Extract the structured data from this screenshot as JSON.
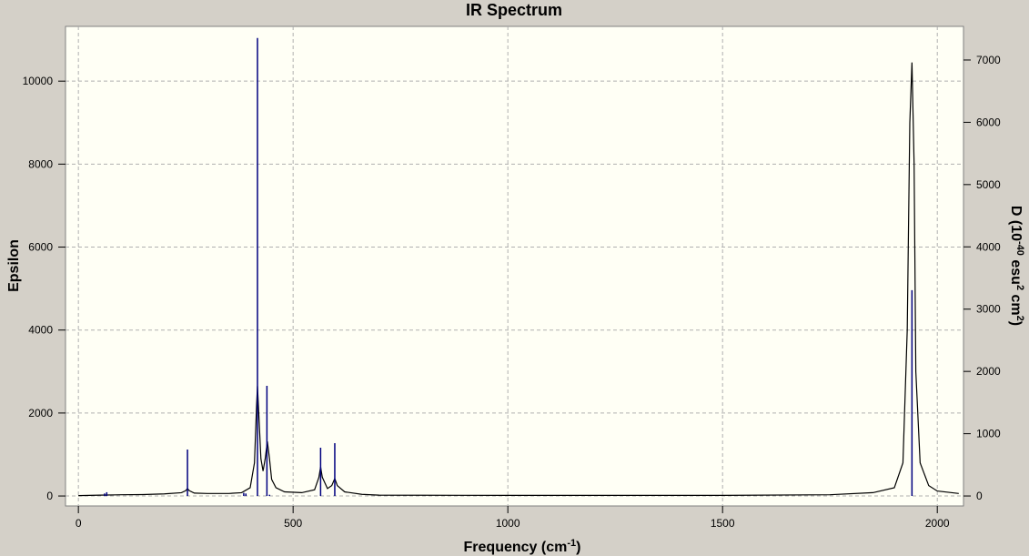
{
  "chart_data": {
    "type": "line",
    "title": "IR Spectrum",
    "x_label": [
      "Frequency (cm",
      "-1",
      ")"
    ],
    "y_label": "Epsilon",
    "y2_label": [
      "D (10",
      "-40",
      " esu",
      "2",
      " cm",
      "2",
      ")"
    ],
    "xlim": [
      -30,
      2061
    ],
    "ylim": [
      -240,
      11320
    ],
    "y2lim": [
      -160,
      7540
    ],
    "xticks": [
      0,
      500,
      1000,
      1500,
      2000
    ],
    "yticks": [
      0,
      2000,
      4000,
      6000,
      8000,
      10000
    ],
    "y2ticks": [
      0,
      1000,
      2000,
      3000,
      4000,
      5000,
      6000,
      7000
    ],
    "grid": true,
    "series": [
      {
        "type": "line",
        "color": "#000000",
        "x": [
          0,
          50,
          100,
          150,
          200,
          240,
          250,
          254,
          258,
          270,
          300,
          350,
          380,
          400,
          410,
          415,
          417,
          420,
          425,
          430,
          435,
          440,
          445,
          450,
          460,
          480,
          520,
          550,
          560,
          564,
          568,
          580,
          590,
          597,
          603,
          620,
          660,
          700,
          1000,
          1500,
          1750,
          1850,
          1900,
          1920,
          1930,
          1936,
          1941,
          1946,
          1950,
          1960,
          1980,
          2000,
          2050
        ],
        "values": [
          10,
          20,
          30,
          35,
          50,
          80,
          130,
          180,
          130,
          70,
          60,
          60,
          80,
          200,
          800,
          2200,
          2650,
          2000,
          900,
          600,
          900,
          1316,
          900,
          400,
          200,
          100,
          80,
          150,
          450,
          700,
          450,
          180,
          250,
          420,
          250,
          100,
          40,
          20,
          15,
          15,
          30,
          80,
          200,
          800,
          4000,
          9000,
          10450,
          8000,
          3000,
          800,
          250,
          120,
          60
        ]
      },
      {
        "type": "stick",
        "axis": "y2",
        "color": "#00007f",
        "x": [
          61,
          66,
          254,
          385,
          390,
          417,
          439,
          445,
          564,
          597,
          1941
        ],
        "values": [
          40,
          60,
          746,
          50,
          40,
          7354,
          1769,
          20,
          775,
          848,
          3304
        ]
      }
    ]
  }
}
